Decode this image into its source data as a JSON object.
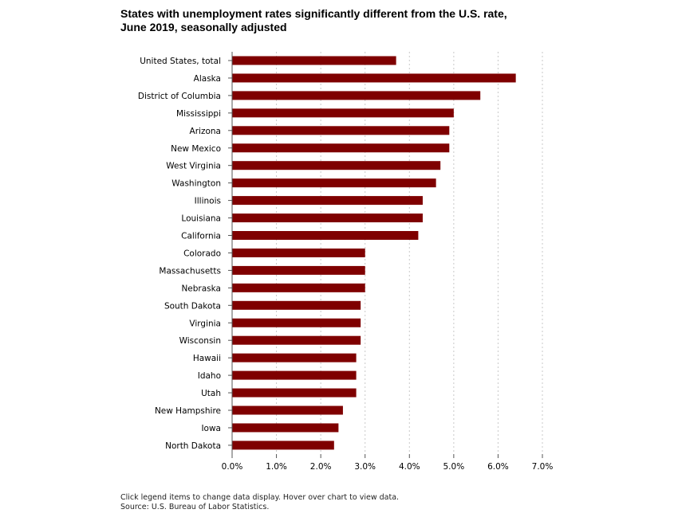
{
  "chart_data": {
    "type": "bar",
    "orientation": "horizontal",
    "title": "States with unemployment rates significantly different from the U.S. rate,",
    "subtitle": "June 2019, seasonally adjusted",
    "xlabel": "",
    "ylabel": "",
    "xlim": [
      0,
      7
    ],
    "ticks": [
      0,
      1,
      2,
      3,
      4,
      5,
      6,
      7
    ],
    "tick_labels": [
      "0.0%",
      "1.0%",
      "2.0%",
      "3.0%",
      "4.0%",
      "5.0%",
      "6.0%",
      "7.0%"
    ],
    "grid": "vertical-dotted",
    "bar_color": "#7f0000",
    "categories": [
      "United States, total",
      "Alaska",
      "District of Columbia",
      "Mississippi",
      "Arizona",
      "New Mexico",
      "West Virginia",
      "Washington",
      "Illinois",
      "Louisiana",
      "California",
      "Colorado",
      "Massachusetts",
      "Nebraska",
      "South Dakota",
      "Virginia",
      "Wisconsin",
      "Hawaii",
      "Idaho",
      "Utah",
      "New Hampshire",
      "Iowa",
      "North Dakota"
    ],
    "values": [
      3.7,
      6.4,
      5.6,
      5.0,
      4.9,
      4.9,
      4.7,
      4.6,
      4.3,
      4.3,
      4.2,
      3.0,
      3.0,
      3.0,
      2.9,
      2.9,
      2.9,
      2.8,
      2.8,
      2.8,
      2.5,
      2.4,
      2.3
    ]
  },
  "footnote": {
    "line1": "Click legend items to change data display. Hover over chart to view data.",
    "line2": "Source: U.S. Bureau of Labor Statistics."
  }
}
